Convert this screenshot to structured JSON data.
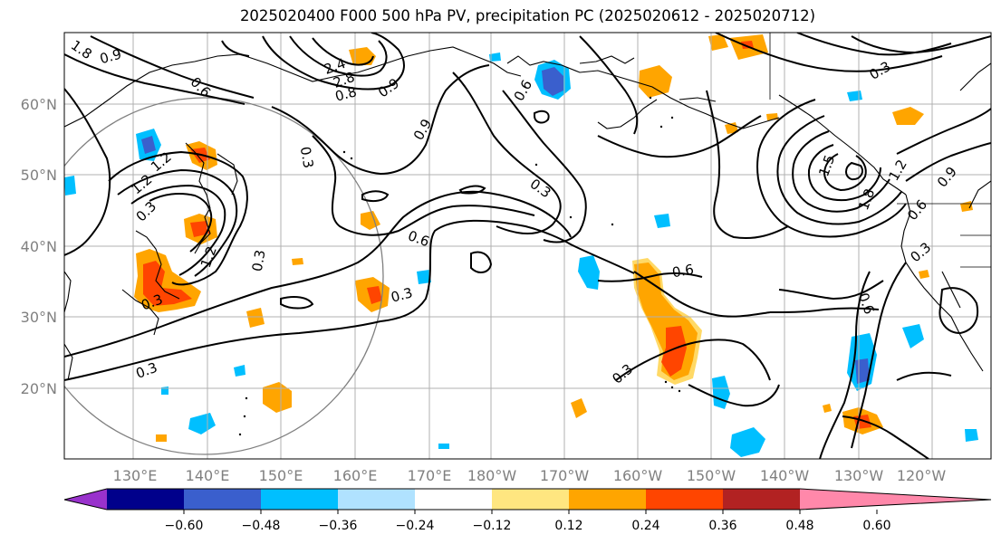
{
  "title": "2025020400 F000 500 hPa PV, precipitation PC (2025020612 - 2025020712)",
  "lat_labels": [
    "60°N",
    "50°N",
    "40°N",
    "30°N",
    "20°N"
  ],
  "lon_labels": [
    "130°E",
    "140°E",
    "150°E",
    "160°E",
    "170°E",
    "180°W",
    "170°W",
    "160°W",
    "150°W",
    "140°W",
    "130°W",
    "120°W"
  ],
  "colorbar": {
    "ticks": [
      "−0.60",
      "−0.48",
      "−0.36",
      "−0.24",
      "−0.12",
      "0.12",
      "0.24",
      "0.36",
      "0.48",
      "0.60"
    ],
    "colors": [
      "#9932cc",
      "#00008b",
      "#3a5fcd",
      "#00bfff",
      "#b0e2ff",
      "#ffffff",
      "#ffe680",
      "#ffa500",
      "#ff4500",
      "#b22222",
      "#ff88aa"
    ],
    "extend": "both"
  },
  "contour_labels": [
    {
      "text": "1.8",
      "name": "pv-label-1.8-nw"
    },
    {
      "text": "0.9",
      "name": "pv-label-0.9-nw"
    },
    {
      "text": "0.6",
      "name": "pv-label-0.6-a"
    },
    {
      "text": "1.2",
      "name": "pv-label-1.2-a"
    },
    {
      "text": "0.3",
      "name": "pv-label-0.3-a"
    },
    {
      "text": "2.4",
      "name": "pv-label-2.4"
    },
    {
      "text": "2.8",
      "name": "pv-label-2.8"
    },
    {
      "text": "0.9",
      "name": "pv-label-0.9-b"
    },
    {
      "text": "0.9",
      "name": "pv-label-0.9-c"
    },
    {
      "text": "0.3",
      "name": "pv-label-0.3-b"
    },
    {
      "text": "0.6",
      "name": "pv-label-0.6-b"
    },
    {
      "text": "0.3",
      "name": "pv-label-0.3-c"
    },
    {
      "text": "1.2",
      "name": "pv-label-1.2-b"
    },
    {
      "text": "0.3",
      "name": "pv-label-0.3-d"
    },
    {
      "text": "0.6",
      "name": "pv-label-0.6-c"
    },
    {
      "text": "0.3",
      "name": "pv-label-0.3-e"
    },
    {
      "text": "0.3",
      "name": "pv-label-0.3-f"
    },
    {
      "text": "0.6",
      "name": "pv-label-0.6-d"
    },
    {
      "text": "0.3",
      "name": "pv-label-0.3-g"
    },
    {
      "text": "0.3",
      "name": "pv-label-0.3-h"
    },
    {
      "text": "1.2",
      "name": "pv-label-1.2-c"
    },
    {
      "text": "1.5",
      "name": "pv-label-1.5"
    },
    {
      "text": "1.8",
      "name": "pv-label-1.8-ne"
    },
    {
      "text": "1.2",
      "name": "pv-label-1.2-d"
    },
    {
      "text": "0.9",
      "name": "pv-label-0.9-d"
    },
    {
      "text": "0.6",
      "name": "pv-label-0.6-e"
    },
    {
      "text": "0.3",
      "name": "pv-label-0.3-i"
    },
    {
      "text": "0.6",
      "name": "pv-label-0.6-f"
    },
    {
      "text": "0.3",
      "name": "pv-label-0.3-j"
    },
    {
      "text": "0.8",
      "name": "pv-label-0.8"
    }
  ]
}
